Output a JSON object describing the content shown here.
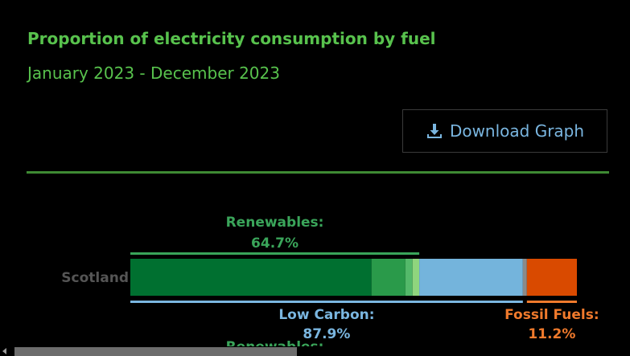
{
  "title": "Proportion of electricity consumption by fuel",
  "subtitle": "January 2023 - December 2023",
  "download_button": {
    "label": "Download Graph",
    "icon": "download-icon"
  },
  "colors": {
    "title": "#58c24d",
    "renewables_label": "#3aa55a",
    "low_carbon_label": "#7ab6e0",
    "fossil_label": "#f07a2c",
    "category_label": "#555555"
  },
  "chart_data": {
    "type": "bar",
    "orientation": "horizontal",
    "stacked": true,
    "categories": [
      "Scotland",
      "Renewables:"
    ],
    "xlim": [
      0,
      100
    ],
    "segments": [
      {
        "color": "#007030",
        "value": 54.0
      },
      {
        "color": "#2a9a4a",
        "value": 7.6
      },
      {
        "color": "#54b96a",
        "value": 1.6
      },
      {
        "color": "#8fd57e",
        "value": 1.5
      },
      {
        "color": "#74b4dc",
        "value": 23.2
      },
      {
        "color": "#8a8a8a",
        "value": 0.9
      },
      {
        "color": "#d94a00",
        "value": 11.2
      }
    ],
    "groups": [
      {
        "label": "Renewables:",
        "value_label": "64.7%",
        "value": 64.7,
        "position": "above",
        "color": "#3aa55a",
        "line_color": "#3aa55a"
      },
      {
        "label": "Low Carbon:",
        "value_label": "87.9%",
        "value": 87.9,
        "position": "below",
        "color": "#7ab6e0",
        "line_color": "#7ab6e0"
      },
      {
        "label": "Fossil Fuels:",
        "value_label": "11.2%",
        "value": 11.2,
        "position": "below",
        "color": "#f07a2c",
        "line_color": "#f07a2c"
      }
    ]
  }
}
